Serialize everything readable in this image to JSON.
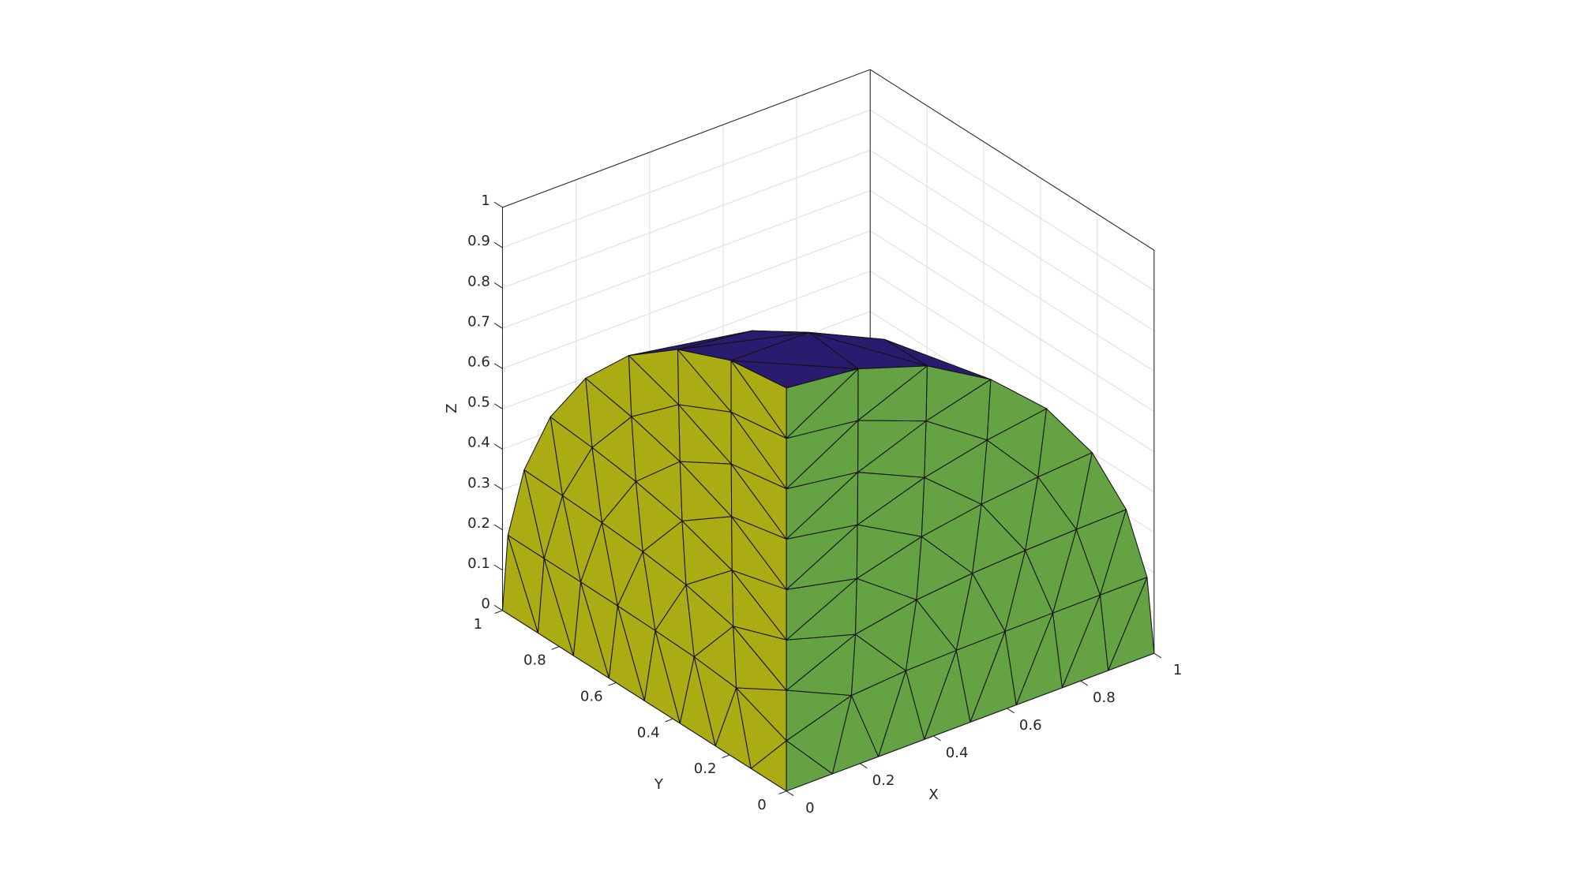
{
  "chart_data": {
    "type": "surface3d",
    "xlabel": "X",
    "ylabel": "Y",
    "zlabel": "Z",
    "xlim": [
      0,
      1
    ],
    "ylim": [
      0,
      1
    ],
    "zlim": [
      0,
      1
    ],
    "xticks": [
      0,
      0.2,
      0.4,
      0.6,
      0.8,
      1
    ],
    "yticks": [
      0,
      0.2,
      0.4,
      0.6,
      0.8,
      1
    ],
    "zticks": [
      0,
      0.1,
      0.2,
      0.3,
      0.4,
      0.5,
      0.6,
      0.7,
      0.8,
      0.9,
      1
    ],
    "grid": true,
    "face_colors": [
      "#abab13",
      "#64a244",
      "#2b1b6f"
    ]
  }
}
